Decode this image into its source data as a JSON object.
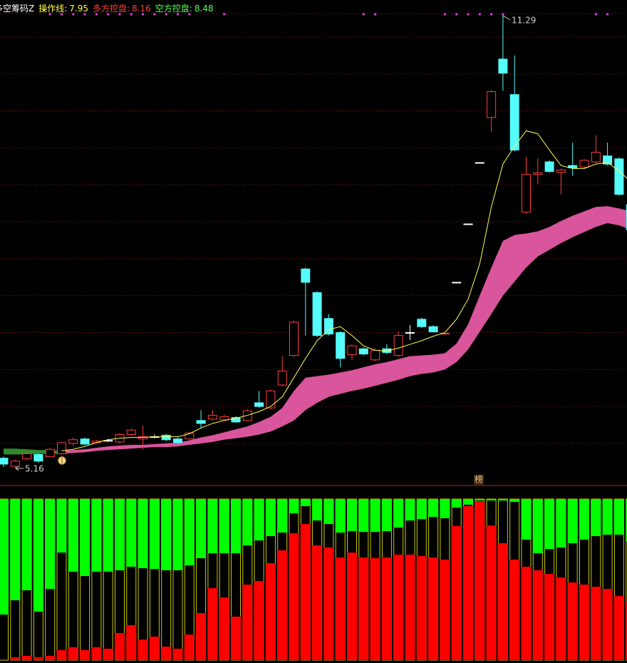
{
  "chart_data": [
    {
      "type": "candlestick",
      "title": "多空筹码Z",
      "indicators": [
        {
          "label": "操作线:",
          "value": 7.95,
          "color": "#ffff54"
        },
        {
          "label": "多方控盘:",
          "value": 8.16,
          "color": "#ff3c3c"
        },
        {
          "label": "空方控盘:",
          "value": 8.48,
          "color": "#54ff54"
        }
      ],
      "ylim": [
        4.94,
        11.5
      ],
      "yticks": [
        5.5,
        6,
        6.5,
        7,
        7.5,
        8,
        8.5,
        9,
        9.5,
        10,
        10.5,
        11
      ],
      "grid": true,
      "up_color": "#ff3c3c",
      "down_color": "#54fcfc",
      "flat_color": "#ffffff",
      "open": [
        5.3,
        5.19,
        5.29,
        5.35,
        5.32,
        5.36,
        5.5,
        5.56,
        5.51,
        5.54,
        5.52,
        5.62,
        5.56,
        5.59,
        5.61,
        5.56,
        5.56,
        5.81,
        5.83,
        5.82,
        5.85,
        5.81,
        6.05,
        5.98,
        6.29,
        6.69,
        7.86,
        7.54,
        7.19,
        7.0,
        6.7,
        6.78,
        6.63,
        6.78,
        6.69,
        7.0,
        7.18,
        7.08,
        6.98,
        7.68,
        8.47,
        9.3,
        9.91,
        10.7,
        10.22,
        8.63,
        9.14,
        9.31,
        9.17,
        9.26,
        9.24,
        9.31,
        9.39,
        9.35,
        8.73
      ],
      "high": [
        5.32,
        5.28,
        5.38,
        5.37,
        5.44,
        5.52,
        5.58,
        5.58,
        5.55,
        5.56,
        5.64,
        5.7,
        5.74,
        5.62,
        5.63,
        5.58,
        5.66,
        5.95,
        5.95,
        5.89,
        5.87,
        5.96,
        6.21,
        6.23,
        6.68,
        7.16,
        7.88,
        7.56,
        7.25,
        7.02,
        6.84,
        6.8,
        6.78,
        6.84,
        7.01,
        7.1,
        7.2,
        7.1,
        7.01,
        7.68,
        8.47,
        9.3,
        10.28,
        11.29,
        10.75,
        9.38,
        9.36,
        9.33,
        9.22,
        9.57,
        9.35,
        9.67,
        9.57,
        9.37,
        8.75
      ],
      "low": [
        5.18,
        5.16,
        5.27,
        5.24,
        5.31,
        5.35,
        5.47,
        5.48,
        5.5,
        5.52,
        5.5,
        5.6,
        5.42,
        5.57,
        5.53,
        5.5,
        5.55,
        5.71,
        5.81,
        5.8,
        5.78,
        5.8,
        5.98,
        5.96,
        6.27,
        6.67,
        6.96,
        6.94,
        6.96,
        6.53,
        6.63,
        6.69,
        6.61,
        6.71,
        6.67,
        6.9,
        7.06,
        7.0,
        6.97,
        7.68,
        8.47,
        9.3,
        9.72,
        10.27,
        9.45,
        8.61,
        9.01,
        9.16,
        8.87,
        9.12,
        9.22,
        9.29,
        9.26,
        8.85,
        8.37
      ],
      "close": [
        5.22,
        5.26,
        5.36,
        5.26,
        5.42,
        5.51,
        5.55,
        5.49,
        5.53,
        5.54,
        5.62,
        5.68,
        5.59,
        5.59,
        5.55,
        5.51,
        5.64,
        5.77,
        5.88,
        5.86,
        5.79,
        5.94,
        6.0,
        6.21,
        6.48,
        7.14,
        7.68,
        6.96,
        6.98,
        6.65,
        6.82,
        6.71,
        6.76,
        6.73,
        6.96,
        7.0,
        7.08,
        7.01,
        6.99,
        7.68,
        8.47,
        9.3,
        10.26,
        10.51,
        9.47,
        9.14,
        9.16,
        9.18,
        9.2,
        9.23,
        9.33,
        9.44,
        9.28,
        8.87,
        8.39
      ],
      "line": {
        "color": "#ffff54",
        "values": [
          null,
          null,
          null,
          null,
          null,
          5.4,
          5.42,
          5.46,
          5.51,
          5.55,
          5.57,
          5.58,
          5.58,
          5.59,
          5.59,
          5.59,
          5.63,
          5.71,
          5.77,
          5.81,
          5.84,
          5.88,
          5.93,
          6.0,
          6.13,
          6.39,
          6.65,
          6.89,
          7.04,
          7.08,
          6.96,
          6.82,
          6.76,
          6.75,
          6.79,
          6.84,
          6.89,
          6.95,
          7.0,
          7.18,
          7.45,
          7.93,
          8.7,
          9.28,
          9.52,
          9.73,
          9.69,
          9.47,
          9.26,
          9.22,
          9.22,
          9.28,
          9.3,
          9.19,
          9.04
        ]
      },
      "bands": [
        {
          "color": "#2e8b2e",
          "upper": [
            5.43,
            5.43,
            5.42,
            5.41,
            5.41,
            5.4,
            null,
            null,
            null,
            null,
            null,
            null,
            null,
            null,
            null,
            null,
            null,
            null,
            null,
            null,
            null,
            null,
            null,
            null,
            null,
            null,
            null,
            null,
            null,
            null,
            null,
            null,
            null,
            null,
            null,
            null,
            null,
            null,
            null,
            null,
            null,
            null,
            null,
            null,
            null,
            null,
            null,
            null,
            null,
            null,
            null,
            null,
            null,
            null,
            null
          ],
          "lower": [
            5.35,
            5.35,
            5.35,
            5.36,
            5.36,
            5.36,
            null,
            null,
            null,
            null,
            null,
            null,
            null,
            null,
            null,
            null,
            null,
            null,
            null,
            null,
            null,
            null,
            null,
            null,
            null,
            null,
            null,
            null,
            null,
            null,
            null,
            null,
            null,
            null,
            null,
            null,
            null,
            null,
            null,
            null,
            null,
            null,
            null,
            null,
            null,
            null,
            null,
            null,
            null,
            null,
            null,
            null,
            null,
            null,
            null
          ]
        },
        {
          "color": "#d9559c",
          "upper": [
            null,
            null,
            null,
            null,
            null,
            5.4,
            5.41,
            5.42,
            5.44,
            5.46,
            5.47,
            5.48,
            5.48,
            5.49,
            5.5,
            5.51,
            5.54,
            5.58,
            5.61,
            5.65,
            5.69,
            5.73,
            5.79,
            5.86,
            5.98,
            6.21,
            6.39,
            6.41,
            6.43,
            6.46,
            6.49,
            6.53,
            6.57,
            6.6,
            6.64,
            6.68,
            6.69,
            6.7,
            6.72,
            6.85,
            7.11,
            7.5,
            7.88,
            8.24,
            8.32,
            8.34,
            8.37,
            8.43,
            8.51,
            8.58,
            8.64,
            8.7,
            8.71,
            8.68,
            8.64
          ],
          "lower": [
            null,
            null,
            null,
            null,
            null,
            5.36,
            5.37,
            5.38,
            5.4,
            5.41,
            5.42,
            5.43,
            5.44,
            5.45,
            5.45,
            5.46,
            5.48,
            5.5,
            5.52,
            5.55,
            5.57,
            5.59,
            5.62,
            5.66,
            5.73,
            5.81,
            5.95,
            6.05,
            6.13,
            6.17,
            6.21,
            6.24,
            6.28,
            6.32,
            6.36,
            6.41,
            6.44,
            6.46,
            6.5,
            6.6,
            6.77,
            7.01,
            7.25,
            7.5,
            7.69,
            7.88,
            8.03,
            8.12,
            8.21,
            8.29,
            8.36,
            8.43,
            8.48,
            8.45,
            8.39
          ]
        }
      ],
      "signals": [
        4,
        5,
        6,
        7,
        8,
        9,
        10,
        11,
        12,
        13,
        14,
        15,
        16,
        19,
        31,
        32,
        38,
        39,
        40,
        41,
        42,
        43,
        51,
        52
      ],
      "signal_color": "#e040e0",
      "low_label": 5.16,
      "high_label": 11.29,
      "marker_label": "榜"
    },
    {
      "type": "bar",
      "ylim": [
        0,
        100
      ],
      "frame_color": "#c8c800",
      "series": [
        {
          "color": "#00ff00",
          "from": "top",
          "values": [
            71.7,
            62.8,
            56.6,
            69.9,
            55.8,
            33.2,
            45.1,
            47.8,
            45.1,
            45.1,
            44.2,
            42.0,
            42.9,
            43.4,
            44.2,
            44.2,
            41.2,
            36.7,
            33.6,
            33.6,
            33.6,
            28.8,
            25.7,
            23.0,
            20.8,
            8.8,
            4.4,
            13.3,
            15.5,
            20.8,
            19.9,
            20.4,
            20.4,
            19.9,
            17.7,
            13.3,
            12.4,
            11.1,
            11.9,
            5.3,
            3.5,
            0.9,
            0.9,
            0.9,
            1.8,
            25.2,
            33.6,
            31.0,
            30.1,
            27.4,
            25.2,
            23.0,
            22.1,
            22.1,
            26.5
          ]
        },
        {
          "color": "#ff0000",
          "from": "bottom",
          "values": [
            0,
            1.8,
            2.7,
            1.8,
            2.7,
            6.2,
            8.0,
            6.2,
            8.0,
            7.1,
            16.8,
            21.7,
            12.8,
            14.6,
            8.4,
            7.1,
            15.9,
            29.2,
            44.7,
            38.9,
            27.0,
            46.9,
            49.1,
            60.2,
            68.1,
            78.8,
            84.5,
            71.2,
            69.9,
            63.7,
            66.8,
            63.7,
            63.3,
            63.7,
            65.5,
            65.5,
            64.6,
            63.7,
            62.4,
            83.2,
            95.6,
            98.7,
            83.6,
            72.6,
            62.4,
            58.0,
            55.8,
            53.5,
            51.3,
            48.2,
            46.9,
            45.6,
            44.2,
            39.8,
            36.7
          ]
        }
      ]
    }
  ]
}
